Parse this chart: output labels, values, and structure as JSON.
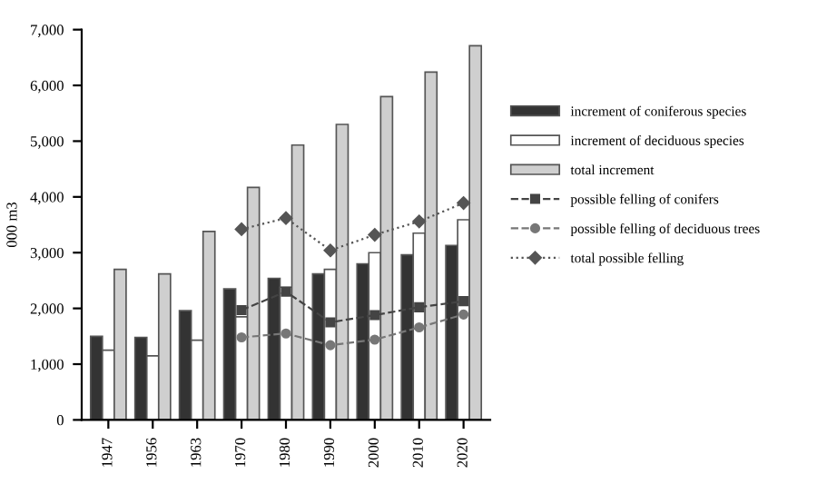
{
  "chart_data": {
    "type": "bar",
    "ylabel": "000 m3",
    "categories": [
      "1947",
      "1956",
      "1963",
      "1970",
      "1980",
      "1990",
      "2000",
      "2010",
      "2020"
    ],
    "series": [
      {
        "name": "increment of coniferous species",
        "color": "#333333",
        "values": [
          1500,
          1480,
          1960,
          2350,
          2540,
          2620,
          2800,
          2960,
          3130
        ]
      },
      {
        "name": "increment of deciduous species",
        "color": "#ffffff",
        "values": [
          1250,
          1150,
          1430,
          1850,
          2380,
          2700,
          3000,
          3350,
          3590
        ]
      },
      {
        "name": "total increment",
        "color": "#cfcfcf",
        "values": [
          2700,
          2620,
          3380,
          4170,
          4930,
          5300,
          5800,
          6240,
          6710
        ]
      },
      {
        "name": "possible felling of conifers",
        "type": "line",
        "color": "#444444",
        "marker": "square",
        "line_style": "dashed",
        "values": [
          null,
          null,
          null,
          1970,
          2300,
          1750,
          1880,
          2020,
          2130
        ]
      },
      {
        "name": "possible felling of deciduous trees",
        "type": "line",
        "color": "#777777",
        "marker": "circle",
        "line_style": "dashed",
        "values": [
          null,
          null,
          null,
          1480,
          1550,
          1340,
          1440,
          1660,
          1890
        ]
      },
      {
        "name": "total possible felling",
        "type": "line",
        "color": "#555555",
        "marker": "diamond",
        "line_style": "dotted",
        "values": [
          null,
          null,
          null,
          3420,
          3620,
          3040,
          3320,
          3560,
          3890
        ]
      }
    ],
    "ylim": [
      0,
      7000
    ],
    "yticks": [
      {
        "value": 0,
        "label": "0"
      },
      {
        "value": 1000,
        "label": "1,000"
      },
      {
        "value": 2000,
        "label": "2,000"
      },
      {
        "value": 3000,
        "label": "3,000"
      },
      {
        "value": 4000,
        "label": "4,000"
      },
      {
        "value": 5000,
        "label": "5,000"
      },
      {
        "value": 6000,
        "label": "6,000"
      },
      {
        "value": 7000,
        "label": "7,000"
      }
    ],
    "legend": "right",
    "grid": false
  }
}
